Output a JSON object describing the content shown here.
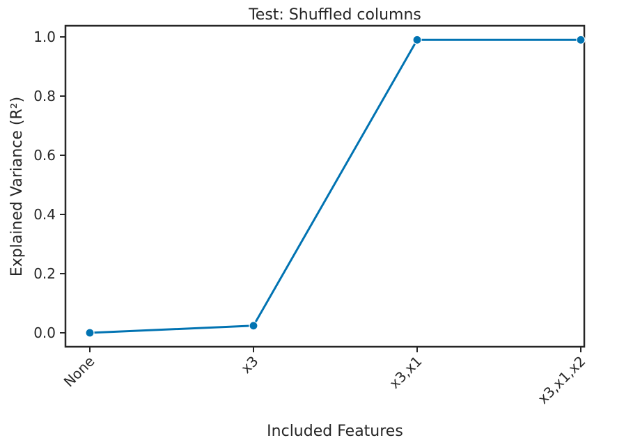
{
  "chart_data": {
    "type": "line",
    "title": "Test: Shuffled columns",
    "xlabel": "Included Features",
    "ylabel": "Explained Variance (R²)",
    "categories": [
      "None",
      "x3",
      "x3,x1",
      "x3,x1,x2"
    ],
    "series": [
      {
        "values": [
          0.0,
          0.024,
          0.99,
          0.99
        ]
      }
    ],
    "ylim": [
      -0.05,
      1.04
    ],
    "yticks": [
      "0.0",
      "0.2",
      "0.4",
      "0.6",
      "0.8",
      "1.0"
    ],
    "grid": false,
    "line_color": "#0173b2",
    "marker": "circle"
  }
}
